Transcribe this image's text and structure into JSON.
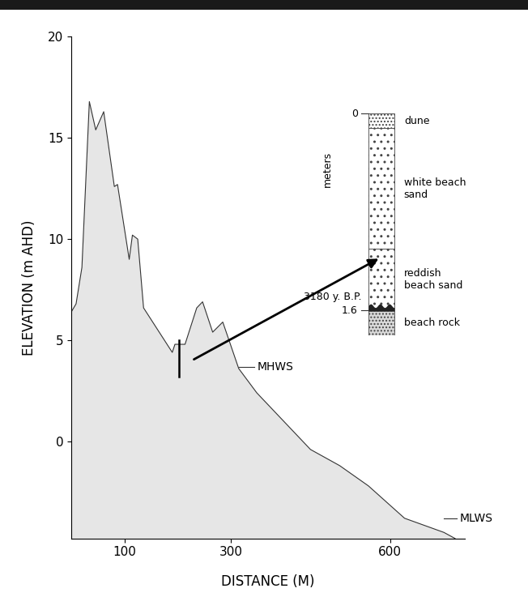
{
  "chart_data": {
    "type": "area",
    "x_label": "DISTANCE (M)",
    "y_label": "ELEVATION (m AHD)",
    "x": [
      0,
      9,
      20,
      34,
      46,
      61,
      81,
      87,
      109,
      115,
      125,
      136,
      190,
      195,
      214,
      236,
      247,
      266,
      285,
      315,
      349,
      450,
      505,
      559,
      627,
      701,
      722
    ],
    "values": [
      6.4,
      6.8,
      8.6,
      16.8,
      15.4,
      16.3,
      12.6,
      12.7,
      9.0,
      10.2,
      10.0,
      6.6,
      4.4,
      4.8,
      4.8,
      6.6,
      6.9,
      5.4,
      5.9,
      3.6,
      2.4,
      -0.4,
      -1.2,
      -2.2,
      -3.8,
      -4.5,
      -4.8
    ],
    "color": "#e6e6e6",
    "xlim": [
      0,
      740
    ],
    "ylim": [
      -4.8,
      20
    ],
    "xticks": [
      100,
      300,
      600
    ],
    "yticks": [
      0,
      5,
      10,
      15,
      20
    ],
    "annotations": [
      {
        "text": "MHWS",
        "x": [
          315,
          345
        ],
        "y": 3.7
      },
      {
        "text": "MLWS",
        "x": [
          700,
          725
        ],
        "y": -3.8
      }
    ],
    "core": {
      "x": 202,
      "y": [
        5,
        3.2
      ]
    },
    "inset": {
      "axis_label": "meters",
      "depth_ticks": [
        0,
        1.6
      ],
      "date_label": "3180 y. B.P.",
      "date_depth": 1.6,
      "layers": [
        {
          "label": "dune",
          "top": 0,
          "bottom": 0.12
        },
        {
          "label": "white beach\nsand",
          "top": 0.12,
          "bottom": 1.1
        },
        {
          "label": "reddish\nbeach sand",
          "top": 1.1,
          "bottom": 1.6
        },
        {
          "label": "beach rock",
          "top": 1.6,
          "bottom": 1.8
        }
      ]
    }
  }
}
